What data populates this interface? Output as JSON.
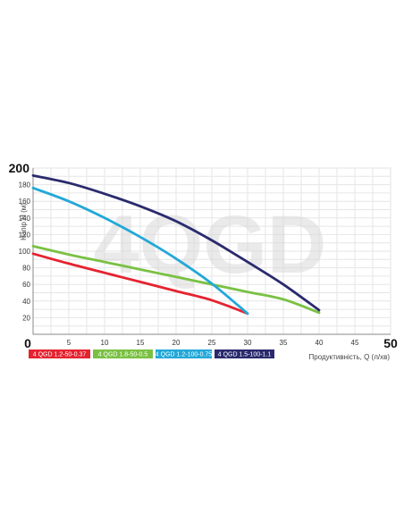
{
  "chart_data": {
    "type": "line",
    "title": "",
    "watermark": "4QGD",
    "xlabel": "Продуктивність, Q (л/хв)",
    "ylabel": "Напір Н (м)",
    "xlim": [
      0,
      50
    ],
    "ylim": [
      0,
      200
    ],
    "x_ticks": [
      "0",
      "5",
      "10",
      "15",
      "20",
      "25",
      "30",
      "35",
      "40",
      "45",
      "50"
    ],
    "y_ticks": [
      "20",
      "40",
      "60",
      "80",
      "100",
      "120",
      "140",
      "160",
      "180",
      "200"
    ],
    "grid": true,
    "legend_position": "bottom-left",
    "series": [
      {
        "name": "4 QGD 1.2-50-0.37",
        "color": "#e52330",
        "points": [
          [
            0,
            97
          ],
          [
            5,
            85
          ],
          [
            10,
            74
          ],
          [
            15,
            63
          ],
          [
            20,
            52
          ],
          [
            25,
            41
          ],
          [
            30,
            25
          ]
        ]
      },
      {
        "name": "4 QGD 1.8-50-0.5",
        "color": "#7ac143",
        "points": [
          [
            0,
            106
          ],
          [
            5,
            96
          ],
          [
            10,
            87
          ],
          [
            15,
            78
          ],
          [
            20,
            69
          ],
          [
            25,
            60
          ],
          [
            30,
            51
          ],
          [
            35,
            42
          ],
          [
            40,
            26
          ]
        ]
      },
      {
        "name": "4 QGD 1.2-100-0.75",
        "color": "#22a8d8",
        "points": [
          [
            0,
            176
          ],
          [
            5,
            160
          ],
          [
            10,
            140
          ],
          [
            15,
            117
          ],
          [
            20,
            91
          ],
          [
            25,
            61
          ],
          [
            30,
            25
          ]
        ]
      },
      {
        "name": "4 QGD 1.5-100-1.1",
        "color": "#2a2a6e",
        "points": [
          [
            0,
            191
          ],
          [
            5,
            182
          ],
          [
            10,
            169
          ],
          [
            15,
            154
          ],
          [
            20,
            136
          ],
          [
            25,
            113
          ],
          [
            30,
            87
          ],
          [
            35,
            60
          ],
          [
            40,
            29
          ]
        ]
      }
    ]
  }
}
